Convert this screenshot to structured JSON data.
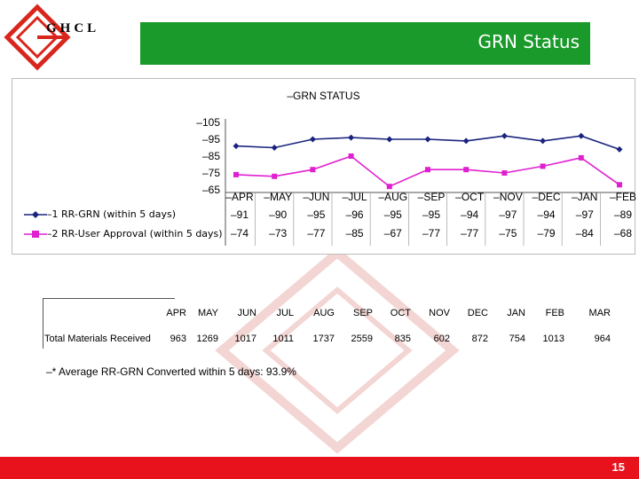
{
  "brand": {
    "logo_text": "GHCL"
  },
  "header": {
    "title": "GRN Status"
  },
  "chart_data": {
    "type": "line",
    "title": "–GRN STATUS",
    "categories": [
      "–APR",
      "–MAY",
      "–JUN",
      "–JUL",
      "–AUG",
      "–SEP",
      "–OCT",
      "–NOV",
      "–DEC",
      "–JAN",
      "–FEB"
    ],
    "y_ticks": [
      "–105",
      "–95",
      "–85",
      "–75",
      "–65"
    ],
    "ylim": [
      65,
      105
    ],
    "grid": false,
    "legend": "left-table",
    "series": [
      {
        "name": "1 RR-GRN (within 5 days)",
        "legend_label": "–1 RR-GRN (within 5 days)",
        "values": [
          91,
          90,
          95,
          96,
          95,
          95,
          94,
          97,
          94,
          97,
          89
        ],
        "labels": [
          "–91",
          "–90",
          "–95",
          "–96",
          "–95",
          "–95",
          "–94",
          "–97",
          "–94",
          "–97",
          "–89"
        ],
        "color": "#1a237e",
        "marker": "diamond"
      },
      {
        "name": "2 RR-User Approval (within 5 days)",
        "legend_label": "–2 RR-User Approval (within 5 days)",
        "values": [
          74,
          73,
          77,
          85,
          67,
          77,
          77,
          75,
          79,
          84,
          68
        ],
        "labels": [
          "–74",
          "–73",
          "–77",
          "–85",
          "–67",
          "–77",
          "–77",
          "–75",
          "–79",
          "–84",
          "–68"
        ],
        "color": "#e020d0",
        "marker": "square"
      }
    ]
  },
  "materials_table": {
    "row_label": "Total Materials Received",
    "months": [
      "APR",
      "MAY",
      "JUN",
      "JUL",
      "AUG",
      "SEP",
      "OCT",
      "NOV",
      "DEC",
      "JAN",
      "FEB",
      "MAR"
    ],
    "values": [
      "963",
      "1269",
      "1017",
      "1011",
      "1737",
      "2559",
      "835",
      "602",
      "872",
      "754",
      "1013",
      "964"
    ]
  },
  "note": "–* Average RR-GRN Converted within 5 days: 93.9%",
  "footer": {
    "page_number": "15",
    "color": "#e8121c"
  }
}
